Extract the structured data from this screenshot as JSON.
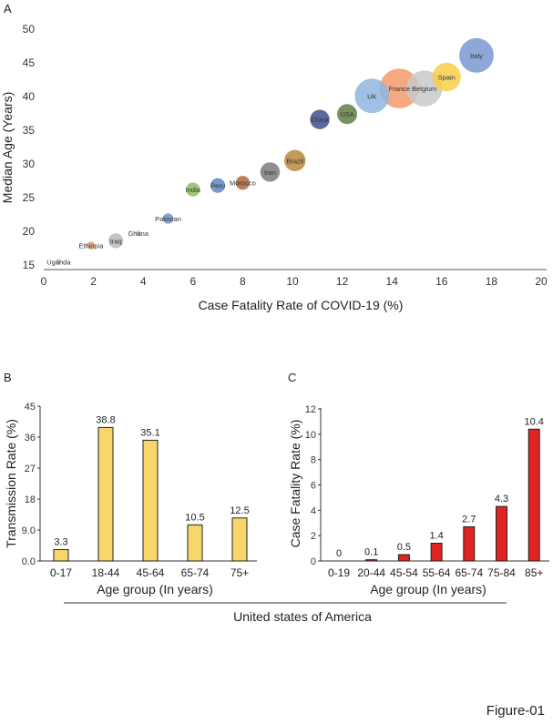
{
  "figure_label": "Figure-01",
  "country_label": "United states of America",
  "chart_data": [
    {
      "panel": "A",
      "type": "scatter",
      "variant": "bubble",
      "xlabel": "Case Fatality Rate of COVID-19 (%)",
      "ylabel": "Median Age (Years)",
      "xlim": [
        0,
        20
      ],
      "ylim": [
        15,
        50
      ],
      "xticks": [
        0,
        2,
        4,
        6,
        8,
        10,
        12,
        14,
        16,
        18,
        20
      ],
      "yticks": [
        15,
        20,
        25,
        30,
        35,
        40,
        45,
        50
      ],
      "points": [
        {
          "label": "Uganda",
          "x": 0.6,
          "y": 15.5,
          "size": 0.3,
          "color": "#c8c8c8"
        },
        {
          "label": "Ethiopia",
          "x": 1.9,
          "y": 17.9,
          "size": 0.6,
          "color": "#e8a07a"
        },
        {
          "label": "Iraq",
          "x": 2.9,
          "y": 18.6,
          "size": 2.0,
          "color": "#b8b8b8"
        },
        {
          "label": "Ghana",
          "x": 3.8,
          "y": 19.7,
          "size": 0.3,
          "color": "#c8c8c8"
        },
        {
          "label": "Pakistan",
          "x": 5.0,
          "y": 21.9,
          "size": 1.0,
          "color": "#6f94cf"
        },
        {
          "label": "India",
          "x": 6.0,
          "y": 26.2,
          "size": 1.8,
          "color": "#8cbd5e"
        },
        {
          "label": "Peru",
          "x": 7.0,
          "y": 26.8,
          "size": 2.0,
          "color": "#5f86bf"
        },
        {
          "label": "Morocco",
          "x": 8.0,
          "y": 27.2,
          "size": 1.8,
          "color": "#b0683f"
        },
        {
          "label": "Iran",
          "x": 9.1,
          "y": 28.8,
          "size": 3.5,
          "color": "#7a7a7a"
        },
        {
          "label": "Brazil",
          "x": 10.1,
          "y": 30.5,
          "size": 4.2,
          "color": "#b88a3c"
        },
        {
          "label": "China",
          "x": 11.1,
          "y": 36.6,
          "size": 3.5,
          "color": "#3d4f8c"
        },
        {
          "label": "USA",
          "x": 12.2,
          "y": 37.4,
          "size": 3.7,
          "color": "#5e7f46"
        },
        {
          "label": "UK",
          "x": 13.2,
          "y": 40.1,
          "size": 11,
          "color": "#8fb5e0"
        },
        {
          "label": "France",
          "x": 14.3,
          "y": 41.2,
          "size": 14.5,
          "color": "#f49a6a"
        },
        {
          "label": "Belgium",
          "x": 15.3,
          "y": 41.2,
          "size": 12,
          "color": "#c9c9c9"
        },
        {
          "label": "Spain",
          "x": 16.2,
          "y": 42.9,
          "size": 7.5,
          "color": "#f8cf46"
        },
        {
          "label": "Italy",
          "x": 17.4,
          "y": 46.1,
          "size": 11,
          "color": "#7a98d2"
        }
      ]
    },
    {
      "panel": "B",
      "type": "bar",
      "xlabel": "Age group (In years)",
      "ylabel": "Transmission Rate (%)",
      "ylim": [
        0,
        45
      ],
      "yticks": [
        "0.0",
        "9.0",
        "18",
        "27",
        "36",
        "45"
      ],
      "ytick_values": [
        0,
        9,
        18,
        27,
        36,
        45
      ],
      "categories": [
        "0-17",
        "18-44",
        "45-64",
        "65-74",
        "75+"
      ],
      "values": [
        3.3,
        38.8,
        35.1,
        10.5,
        12.5
      ],
      "value_labels": [
        "3.3",
        "38.8",
        "35.1",
        "10.5",
        "12.5"
      ],
      "color": "#f9d66b"
    },
    {
      "panel": "C",
      "type": "bar",
      "xlabel": "Age group (In years)",
      "ylabel": "Case Fatality Rate (%)",
      "ylim": [
        0,
        12
      ],
      "yticks": [
        "0",
        "2",
        "4",
        "6",
        "8",
        "10",
        "12"
      ],
      "ytick_values": [
        0,
        2,
        4,
        6,
        8,
        10,
        12
      ],
      "categories": [
        "0-19",
        "20-44",
        "45-54",
        "55-64",
        "65-74",
        "75-84",
        "85+"
      ],
      "values": [
        0,
        0.1,
        0.5,
        1.4,
        2.7,
        4.3,
        10.4
      ],
      "value_labels": [
        "0",
        "0.1",
        "0.5",
        "1.4",
        "2.7",
        "4.3",
        "10.4"
      ],
      "color": "#e02424"
    }
  ]
}
